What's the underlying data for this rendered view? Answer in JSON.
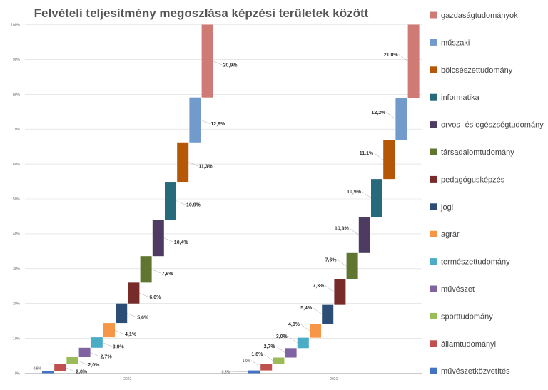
{
  "chart_data": {
    "type": "bar",
    "subtype": "stacked-waterfall",
    "title": "Felvételi teljesítmény megoszlása képzési területek között",
    "xlabel": "",
    "ylabel": "",
    "ylim": [
      0,
      100
    ],
    "y_ticks": [
      "0%",
      "10%",
      "20%",
      "30%",
      "40%",
      "50%",
      "60%",
      "70%",
      "80%",
      "90%",
      "100%"
    ],
    "grid": true,
    "legend_position": "right",
    "groups": [
      "2022",
      "2021"
    ],
    "series": [
      {
        "name": "művészetközvetítés",
        "color": "#4472c4",
        "values": [
          0.6,
          0.8
        ],
        "labels": [
          "0,6%",
          "0,8%"
        ]
      },
      {
        "name": "államtudományi",
        "color": "#c0504d",
        "values": [
          2.0,
          1.9
        ],
        "labels": [
          "2,0%",
          "1,9%"
        ]
      },
      {
        "name": "sporttudomány",
        "color": "#9bbb59",
        "values": [
          2.0,
          1.8
        ],
        "labels": [
          "2,0%",
          "1,8%"
        ]
      },
      {
        "name": "művészet",
        "color": "#8064a2",
        "values": [
          2.7,
          2.7
        ],
        "labels": [
          "2,7%",
          "2,7%"
        ]
      },
      {
        "name": "természettudomány",
        "color": "#4bacc6",
        "values": [
          3.0,
          3.0
        ],
        "labels": [
          "3,0%",
          "3,0%"
        ]
      },
      {
        "name": "agrár",
        "color": "#f79646",
        "values": [
          4.1,
          4.0
        ],
        "labels": [
          "4,1%",
          "4,0%"
        ]
      },
      {
        "name": "jogi",
        "color": "#2c4d75",
        "values": [
          5.6,
          5.4
        ],
        "labels": [
          "5,6%",
          "5,4%"
        ]
      },
      {
        "name": "pedagógusképzés",
        "color": "#772c2a",
        "values": [
          6.0,
          7.3
        ],
        "labels": [
          "6,0%",
          "7,3%"
        ]
      },
      {
        "name": "társadalomtudomány",
        "color": "#5f7530",
        "values": [
          7.6,
          7.6
        ],
        "labels": [
          "7,6%",
          "7,6%"
        ]
      },
      {
        "name": "orvos- és egészségtudomány",
        "color": "#4d3b62",
        "values": [
          10.4,
          10.3
        ],
        "labels": [
          "10,4%",
          "10,3%"
        ]
      },
      {
        "name": "informatika",
        "color": "#276a7c",
        "values": [
          10.9,
          10.9
        ],
        "labels": [
          "10,9%",
          "10,9%"
        ]
      },
      {
        "name": "bölcsészettudomány",
        "color": "#b65708",
        "values": [
          11.3,
          11.1
        ],
        "labels": [
          "11,3%",
          "11,1%"
        ]
      },
      {
        "name": "műszaki",
        "color": "#729aca",
        "values": [
          12.9,
          12.2
        ],
        "labels": [
          "12,9%",
          "12,2%"
        ]
      },
      {
        "name": "gazdaságtudományok",
        "color": "#d07a76",
        "values": [
          20.9,
          21.0
        ],
        "labels": [
          "20,9%",
          "21,0%"
        ]
      }
    ],
    "legend_order": [
      "gazdaságtudományok",
      "műszaki",
      "bölcsészettudomány",
      "informatika",
      "orvos- és egészségtudomány",
      "társadalomtudomány",
      "pedagógusképzés",
      "jogi",
      "agrár",
      "természettudomány",
      "művészet",
      "sporttudomány",
      "államtudományi",
      "művészetközvetítés"
    ]
  }
}
